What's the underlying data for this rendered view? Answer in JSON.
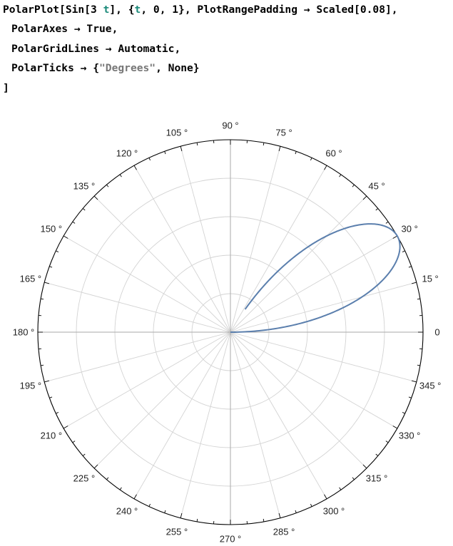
{
  "code": {
    "line1_prefix": "PolarPlot[Sin[3 ",
    "line1_var1": "t",
    "line1_mid": "], {",
    "line1_var2": "t",
    "line1_suffix": ", 0, 1}, PlotRangePadding → Scaled[0.08],",
    "line2": "PolarAxes → True,",
    "line3": "PolarGridLines → Automatic,",
    "line4_prefix": "PolarTicks → {",
    "line4_string": "\"Degrees\"",
    "line4_suffix": ", None}",
    "line5": "]"
  },
  "colors": {
    "curve": "#5b7fad",
    "grid": "#d3d3d3",
    "axis": "#000000",
    "code_variable": "#1b8a7a",
    "code_string": "#777777"
  },
  "chart_data": {
    "type": "line",
    "coordinate_system": "polar",
    "function": "Sin[3 t]",
    "t_range": [
      0,
      1
    ],
    "r_range": [
      0,
      1
    ],
    "grid": true,
    "radial_grid_rings": 5,
    "angular_grid_step_deg": 15,
    "tick_labels": [
      "0",
      "15 °",
      "30 °",
      "45 °",
      "60 °",
      "75 °",
      "90 °",
      "105 °",
      "120 °",
      "135 °",
      "150 °",
      "165 °",
      "180 °",
      "195 °",
      "210 °",
      "225 °",
      "240 °",
      "255 °",
      "270 °",
      "285 °",
      "300 °",
      "315 °",
      "330 °",
      "345 °"
    ],
    "series": [
      {
        "values": [
          {
            "t": 0.0,
            "r": 0.0
          },
          {
            "t": 0.05,
            "r": 0.1494
          },
          {
            "t": 0.1,
            "r": 0.2955
          },
          {
            "t": 0.15,
            "r": 0.435
          },
          {
            "t": 0.2,
            "r": 0.5646
          },
          {
            "t": 0.25,
            "r": 0.6816
          },
          {
            "t": 0.3,
            "r": 0.7833
          },
          {
            "t": 0.35,
            "r": 0.8674
          },
          {
            "t": 0.4,
            "r": 0.932
          },
          {
            "t": 0.45,
            "r": 0.9757
          },
          {
            "t": 0.5,
            "r": 0.9975
          },
          {
            "t": 0.55,
            "r": 0.997
          },
          {
            "t": 0.6,
            "r": 0.9738
          },
          {
            "t": 0.65,
            "r": 0.929
          },
          {
            "t": 0.7,
            "r": 0.8632
          },
          {
            "t": 0.75,
            "r": 0.7781
          },
          {
            "t": 0.8,
            "r": 0.6755
          },
          {
            "t": 0.85,
            "r": 0.5577
          },
          {
            "t": 0.9,
            "r": 0.4274
          },
          {
            "t": 0.95,
            "r": 0.2874
          },
          {
            "t": 1.0,
            "r": 0.1411
          }
        ]
      }
    ]
  }
}
